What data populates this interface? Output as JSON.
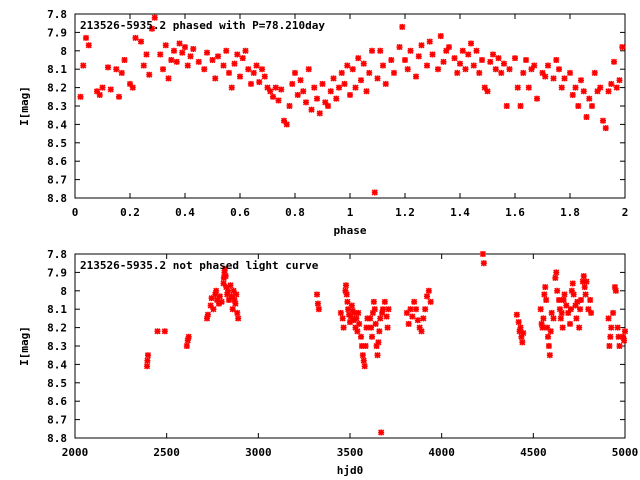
{
  "chart_data": [
    {
      "type": "scatter",
      "title": "213526-5935.2 phased with P=78.210day",
      "xlabel": "phase",
      "ylabel": "I[mag]",
      "xlim": [
        0,
        2
      ],
      "ylim": [
        7.8,
        8.8
      ],
      "y_inverted": true,
      "grid": false,
      "marker_color": "#ff0000",
      "x_ticks": [
        0,
        0.2,
        0.4,
        0.6,
        0.8,
        1,
        1.2,
        1.4,
        1.6,
        1.8,
        2
      ],
      "x_tick_labels": [
        "0",
        "0.2",
        "0.4",
        "0.6",
        "0.8",
        "1",
        "1.2",
        "1.4",
        "1.6",
        "1.8",
        "2"
      ],
      "y_ticks": [
        7.8,
        7.9,
        8,
        8.1,
        8.2,
        8.3,
        8.4,
        8.5,
        8.6,
        8.7,
        8.8
      ],
      "y_tick_labels": [
        "7.8",
        "7.9",
        "8",
        "8.1",
        "8.2",
        "8.3",
        "8.4",
        "8.5",
        "8.6",
        "8.7",
        "8.8"
      ],
      "points": [
        [
          0.02,
          8.25
        ],
        [
          0.03,
          8.08
        ],
        [
          0.04,
          7.93
        ],
        [
          0.05,
          7.97
        ],
        [
          0.08,
          8.22
        ],
        [
          0.09,
          8.24
        ],
        [
          0.1,
          8.2
        ],
        [
          0.12,
          8.09
        ],
        [
          0.13,
          8.21
        ],
        [
          0.15,
          8.1
        ],
        [
          0.16,
          8.25
        ],
        [
          0.17,
          8.12
        ],
        [
          0.18,
          8.05
        ],
        [
          0.2,
          8.18
        ],
        [
          0.21,
          8.2
        ],
        [
          0.22,
          7.93
        ],
        [
          0.24,
          7.95
        ],
        [
          0.25,
          8.08
        ],
        [
          0.26,
          8.02
        ],
        [
          0.27,
          8.13
        ],
        [
          0.28,
          7.88
        ],
        [
          0.29,
          7.82
        ],
        [
          0.31,
          8.02
        ],
        [
          0.32,
          8.1
        ],
        [
          0.33,
          7.97
        ],
        [
          0.34,
          8.15
        ],
        [
          0.35,
          8.05
        ],
        [
          0.36,
          8.0
        ],
        [
          0.37,
          8.06
        ],
        [
          0.38,
          7.96
        ],
        [
          0.39,
          8.01
        ],
        [
          0.4,
          7.98
        ],
        [
          0.41,
          8.08
        ],
        [
          0.42,
          8.03
        ],
        [
          0.43,
          7.99
        ],
        [
          0.45,
          8.06
        ],
        [
          0.47,
          8.1
        ],
        [
          0.48,
          8.01
        ],
        [
          0.5,
          8.05
        ],
        [
          0.51,
          8.15
        ],
        [
          0.52,
          8.03
        ],
        [
          0.54,
          8.08
        ],
        [
          0.55,
          8.0
        ],
        [
          0.56,
          8.12
        ],
        [
          0.57,
          8.2
        ],
        [
          0.58,
          8.07
        ],
        [
          0.59,
          8.02
        ],
        [
          0.6,
          8.14
        ],
        [
          0.61,
          8.04
        ],
        [
          0.62,
          8.0
        ],
        [
          0.63,
          8.1
        ],
        [
          0.64,
          8.18
        ],
        [
          0.65,
          8.12
        ],
        [
          0.66,
          8.08
        ],
        [
          0.67,
          8.17
        ],
        [
          0.68,
          8.1
        ],
        [
          0.69,
          8.14
        ],
        [
          0.7,
          8.2
        ],
        [
          0.71,
          8.22
        ],
        [
          0.72,
          8.25
        ],
        [
          0.73,
          8.2
        ],
        [
          0.74,
          8.27
        ],
        [
          0.75,
          8.21
        ],
        [
          0.76,
          8.38
        ],
        [
          0.77,
          8.4
        ],
        [
          0.78,
          8.3
        ],
        [
          0.79,
          8.18
        ],
        [
          0.8,
          8.12
        ],
        [
          0.81,
          8.24
        ],
        [
          0.82,
          8.16
        ],
        [
          0.83,
          8.22
        ],
        [
          0.84,
          8.28
        ],
        [
          0.85,
          8.1
        ],
        [
          0.86,
          8.32
        ],
        [
          0.87,
          8.2
        ],
        [
          0.88,
          8.26
        ],
        [
          0.89,
          8.34
        ],
        [
          0.9,
          8.18
        ],
        [
          0.91,
          8.28
        ],
        [
          0.92,
          8.3
        ],
        [
          0.93,
          8.22
        ],
        [
          0.94,
          8.15
        ],
        [
          0.95,
          8.26
        ],
        [
          0.96,
          8.2
        ],
        [
          0.97,
          8.12
        ],
        [
          0.98,
          8.18
        ],
        [
          0.99,
          8.08
        ],
        [
          1.0,
          8.24
        ],
        [
          1.01,
          8.1
        ],
        [
          1.02,
          8.2
        ],
        [
          1.03,
          8.04
        ],
        [
          1.04,
          8.16
        ],
        [
          1.05,
          8.07
        ],
        [
          1.06,
          8.22
        ],
        [
          1.07,
          8.12
        ],
        [
          1.08,
          8.0
        ],
        [
          1.09,
          8.77
        ],
        [
          1.1,
          8.15
        ],
        [
          1.11,
          8.0
        ],
        [
          1.12,
          8.08
        ],
        [
          1.13,
          8.18
        ],
        [
          1.15,
          8.05
        ],
        [
          1.16,
          8.12
        ],
        [
          1.18,
          7.98
        ],
        [
          1.19,
          7.87
        ],
        [
          1.2,
          8.05
        ],
        [
          1.21,
          8.1
        ],
        [
          1.22,
          8.0
        ],
        [
          1.24,
          8.14
        ],
        [
          1.25,
          8.03
        ],
        [
          1.26,
          7.97
        ],
        [
          1.28,
          8.08
        ],
        [
          1.29,
          7.95
        ],
        [
          1.3,
          8.02
        ],
        [
          1.32,
          8.1
        ],
        [
          1.33,
          7.92
        ],
        [
          1.34,
          8.06
        ],
        [
          1.35,
          8.0
        ],
        [
          1.36,
          7.98
        ],
        [
          1.38,
          8.04
        ],
        [
          1.39,
          8.12
        ],
        [
          1.4,
          8.07
        ],
        [
          1.41,
          8.0
        ],
        [
          1.42,
          8.1
        ],
        [
          1.43,
          8.02
        ],
        [
          1.44,
          7.96
        ],
        [
          1.45,
          8.08
        ],
        [
          1.46,
          8.0
        ],
        [
          1.47,
          8.12
        ],
        [
          1.48,
          8.05
        ],
        [
          1.49,
          8.2
        ],
        [
          1.5,
          8.22
        ],
        [
          1.51,
          8.06
        ],
        [
          1.52,
          8.02
        ],
        [
          1.53,
          8.1
        ],
        [
          1.54,
          8.04
        ],
        [
          1.55,
          8.12
        ],
        [
          1.56,
          8.07
        ],
        [
          1.57,
          8.3
        ],
        [
          1.58,
          8.1
        ],
        [
          1.6,
          8.04
        ],
        [
          1.61,
          8.2
        ],
        [
          1.62,
          8.3
        ],
        [
          1.63,
          8.12
        ],
        [
          1.64,
          8.05
        ],
        [
          1.65,
          8.2
        ],
        [
          1.66,
          8.1
        ],
        [
          1.67,
          8.08
        ],
        [
          1.68,
          8.26
        ],
        [
          1.7,
          8.12
        ],
        [
          1.71,
          8.14
        ],
        [
          1.72,
          8.08
        ],
        [
          1.74,
          8.15
        ],
        [
          1.75,
          8.05
        ],
        [
          1.76,
          8.1
        ],
        [
          1.77,
          8.2
        ],
        [
          1.78,
          8.15
        ],
        [
          1.8,
          8.12
        ],
        [
          1.81,
          8.24
        ],
        [
          1.82,
          8.2
        ],
        [
          1.83,
          8.3
        ],
        [
          1.84,
          8.16
        ],
        [
          1.85,
          8.22
        ],
        [
          1.86,
          8.36
        ],
        [
          1.87,
          8.26
        ],
        [
          1.88,
          8.3
        ],
        [
          1.89,
          8.12
        ],
        [
          1.9,
          8.22
        ],
        [
          1.91,
          8.2
        ],
        [
          1.92,
          8.38
        ],
        [
          1.93,
          8.42
        ],
        [
          1.94,
          8.22
        ],
        [
          1.95,
          8.18
        ],
        [
          1.96,
          8.06
        ],
        [
          1.97,
          8.2
        ],
        [
          1.98,
          8.16
        ],
        [
          1.99,
          7.98
        ]
      ]
    },
    {
      "type": "scatter",
      "title": "213526-5935.2 not phased light curve",
      "xlabel": "hjd0",
      "ylabel": "I[mag]",
      "xlim": [
        2000,
        5000
      ],
      "ylim": [
        7.8,
        8.8
      ],
      "y_inverted": true,
      "grid": false,
      "marker_color": "#ff0000",
      "x_ticks": [
        2000,
        2500,
        3000,
        3500,
        4000,
        4500,
        5000
      ],
      "x_tick_labels": [
        "2000",
        "2500",
        "3000",
        "3500",
        "4000",
        "4500",
        "5000"
      ],
      "y_ticks": [
        7.8,
        7.9,
        8,
        8.1,
        8.2,
        8.3,
        8.4,
        8.5,
        8.6,
        8.7,
        8.8
      ],
      "y_tick_labels": [
        "7.8",
        "7.9",
        "8",
        "8.1",
        "8.2",
        "8.3",
        "8.4",
        "8.5",
        "8.6",
        "8.7",
        "8.8"
      ],
      "points": [
        [
          2393,
          8.41
        ],
        [
          2395,
          8.38
        ],
        [
          2398,
          8.35
        ],
        [
          2450,
          8.22
        ],
        [
          2490,
          8.22
        ],
        [
          2610,
          8.3
        ],
        [
          2615,
          8.27
        ],
        [
          2620,
          8.25
        ],
        [
          2720,
          8.15
        ],
        [
          2725,
          8.13
        ],
        [
          2740,
          8.08
        ],
        [
          2745,
          8.04
        ],
        [
          2755,
          8.1
        ],
        [
          2765,
          8.02
        ],
        [
          2770,
          8.0
        ],
        [
          2775,
          8.05
        ],
        [
          2785,
          8.07
        ],
        [
          2790,
          8.03
        ],
        [
          2800,
          8.06
        ],
        [
          2810,
          7.96
        ],
        [
          2812,
          7.93
        ],
        [
          2815,
          7.9
        ],
        [
          2818,
          7.88
        ],
        [
          2822,
          7.92
        ],
        [
          2825,
          7.98
        ],
        [
          2830,
          8.02
        ],
        [
          2835,
          8.0
        ],
        [
          2840,
          8.05
        ],
        [
          2848,
          7.97
        ],
        [
          2855,
          8.03
        ],
        [
          2860,
          8.1
        ],
        [
          2865,
          8.0
        ],
        [
          2870,
          8.05
        ],
        [
          2875,
          8.07
        ],
        [
          2880,
          8.02
        ],
        [
          2885,
          8.12
        ],
        [
          2890,
          8.15
        ],
        [
          3320,
          8.02
        ],
        [
          3325,
          8.07
        ],
        [
          3330,
          8.1
        ],
        [
          3450,
          8.12
        ],
        [
          3460,
          8.15
        ],
        [
          3465,
          8.2
        ],
        [
          3475,
          8.0
        ],
        [
          3478,
          7.97
        ],
        [
          3482,
          8.02
        ],
        [
          3486,
          8.06
        ],
        [
          3490,
          8.1
        ],
        [
          3495,
          8.13
        ],
        [
          3500,
          8.17
        ],
        [
          3505,
          8.14
        ],
        [
          3510,
          8.08
        ],
        [
          3515,
          8.11
        ],
        [
          3520,
          8.16
        ],
        [
          3525,
          8.12
        ],
        [
          3530,
          8.2
        ],
        [
          3535,
          8.15
        ],
        [
          3540,
          8.22
        ],
        [
          3545,
          8.12
        ],
        [
          3550,
          8.18
        ],
        [
          3560,
          8.25
        ],
        [
          3565,
          8.3
        ],
        [
          3570,
          8.35
        ],
        [
          3575,
          8.38
        ],
        [
          3580,
          8.41
        ],
        [
          3585,
          8.3
        ],
        [
          3590,
          8.2
        ],
        [
          3595,
          8.15
        ],
        [
          3610,
          8.15
        ],
        [
          3615,
          8.2
        ],
        [
          3620,
          8.25
        ],
        [
          3625,
          8.12
        ],
        [
          3630,
          8.06
        ],
        [
          3635,
          8.1
        ],
        [
          3640,
          8.18
        ],
        [
          3645,
          8.3
        ],
        [
          3650,
          8.35
        ],
        [
          3655,
          8.28
        ],
        [
          3660,
          8.22
        ],
        [
          3665,
          8.15
        ],
        [
          3670,
          8.77
        ],
        [
          3675,
          8.12
        ],
        [
          3680,
          8.1
        ],
        [
          3690,
          8.06
        ],
        [
          3700,
          8.14
        ],
        [
          3705,
          8.2
        ],
        [
          3710,
          8.1
        ],
        [
          3810,
          8.12
        ],
        [
          3820,
          8.18
        ],
        [
          3830,
          8.1
        ],
        [
          3840,
          8.14
        ],
        [
          3850,
          8.06
        ],
        [
          3860,
          8.1
        ],
        [
          3870,
          8.16
        ],
        [
          3880,
          8.2
        ],
        [
          3890,
          8.22
        ],
        [
          3900,
          8.15
        ],
        [
          3910,
          8.1
        ],
        [
          3920,
          8.03
        ],
        [
          3930,
          8.0
        ],
        [
          3940,
          8.06
        ],
        [
          4225,
          7.8
        ],
        [
          4230,
          7.85
        ],
        [
          4410,
          8.13
        ],
        [
          4420,
          8.17
        ],
        [
          4425,
          8.22
        ],
        [
          4430,
          8.2
        ],
        [
          4435,
          8.25
        ],
        [
          4440,
          8.28
        ],
        [
          4445,
          8.23
        ],
        [
          4540,
          8.1
        ],
        [
          4545,
          8.18
        ],
        [
          4550,
          8.2
        ],
        [
          4555,
          8.15
        ],
        [
          4560,
          8.02
        ],
        [
          4565,
          7.98
        ],
        [
          4570,
          8.05
        ],
        [
          4575,
          8.2
        ],
        [
          4580,
          8.25
        ],
        [
          4585,
          8.3
        ],
        [
          4590,
          8.35
        ],
        [
          4595,
          8.22
        ],
        [
          4600,
          8.12
        ],
        [
          4610,
          8.15
        ],
        [
          4620,
          7.93
        ],
        [
          4625,
          7.9
        ],
        [
          4630,
          8.0
        ],
        [
          4640,
          8.05
        ],
        [
          4645,
          8.1
        ],
        [
          4650,
          8.15
        ],
        [
          4655,
          8.12
        ],
        [
          4660,
          8.2
        ],
        [
          4665,
          8.05
        ],
        [
          4670,
          8.02
        ],
        [
          4680,
          8.08
        ],
        [
          4690,
          8.12
        ],
        [
          4700,
          8.18
        ],
        [
          4705,
          8.1
        ],
        [
          4710,
          8.0
        ],
        [
          4715,
          7.96
        ],
        [
          4720,
          8.02
        ],
        [
          4730,
          8.08
        ],
        [
          4735,
          8.15
        ],
        [
          4740,
          8.06
        ],
        [
          4750,
          8.2
        ],
        [
          4755,
          8.1
        ],
        [
          4760,
          8.05
        ],
        [
          4770,
          7.95
        ],
        [
          4775,
          7.92
        ],
        [
          4780,
          7.98
        ],
        [
          4785,
          8.02
        ],
        [
          4790,
          7.95
        ],
        [
          4800,
          8.1
        ],
        [
          4810,
          8.05
        ],
        [
          4815,
          8.12
        ],
        [
          4910,
          8.15
        ],
        [
          4915,
          8.3
        ],
        [
          4920,
          8.25
        ],
        [
          4925,
          8.2
        ],
        [
          4935,
          8.12
        ],
        [
          4945,
          7.98
        ],
        [
          4950,
          8.0
        ],
        [
          4960,
          8.2
        ],
        [
          4965,
          8.25
        ],
        [
          4970,
          8.3
        ],
        [
          4990,
          8.25
        ],
        [
          4995,
          8.27
        ],
        [
          5000,
          8.22
        ]
      ]
    }
  ]
}
